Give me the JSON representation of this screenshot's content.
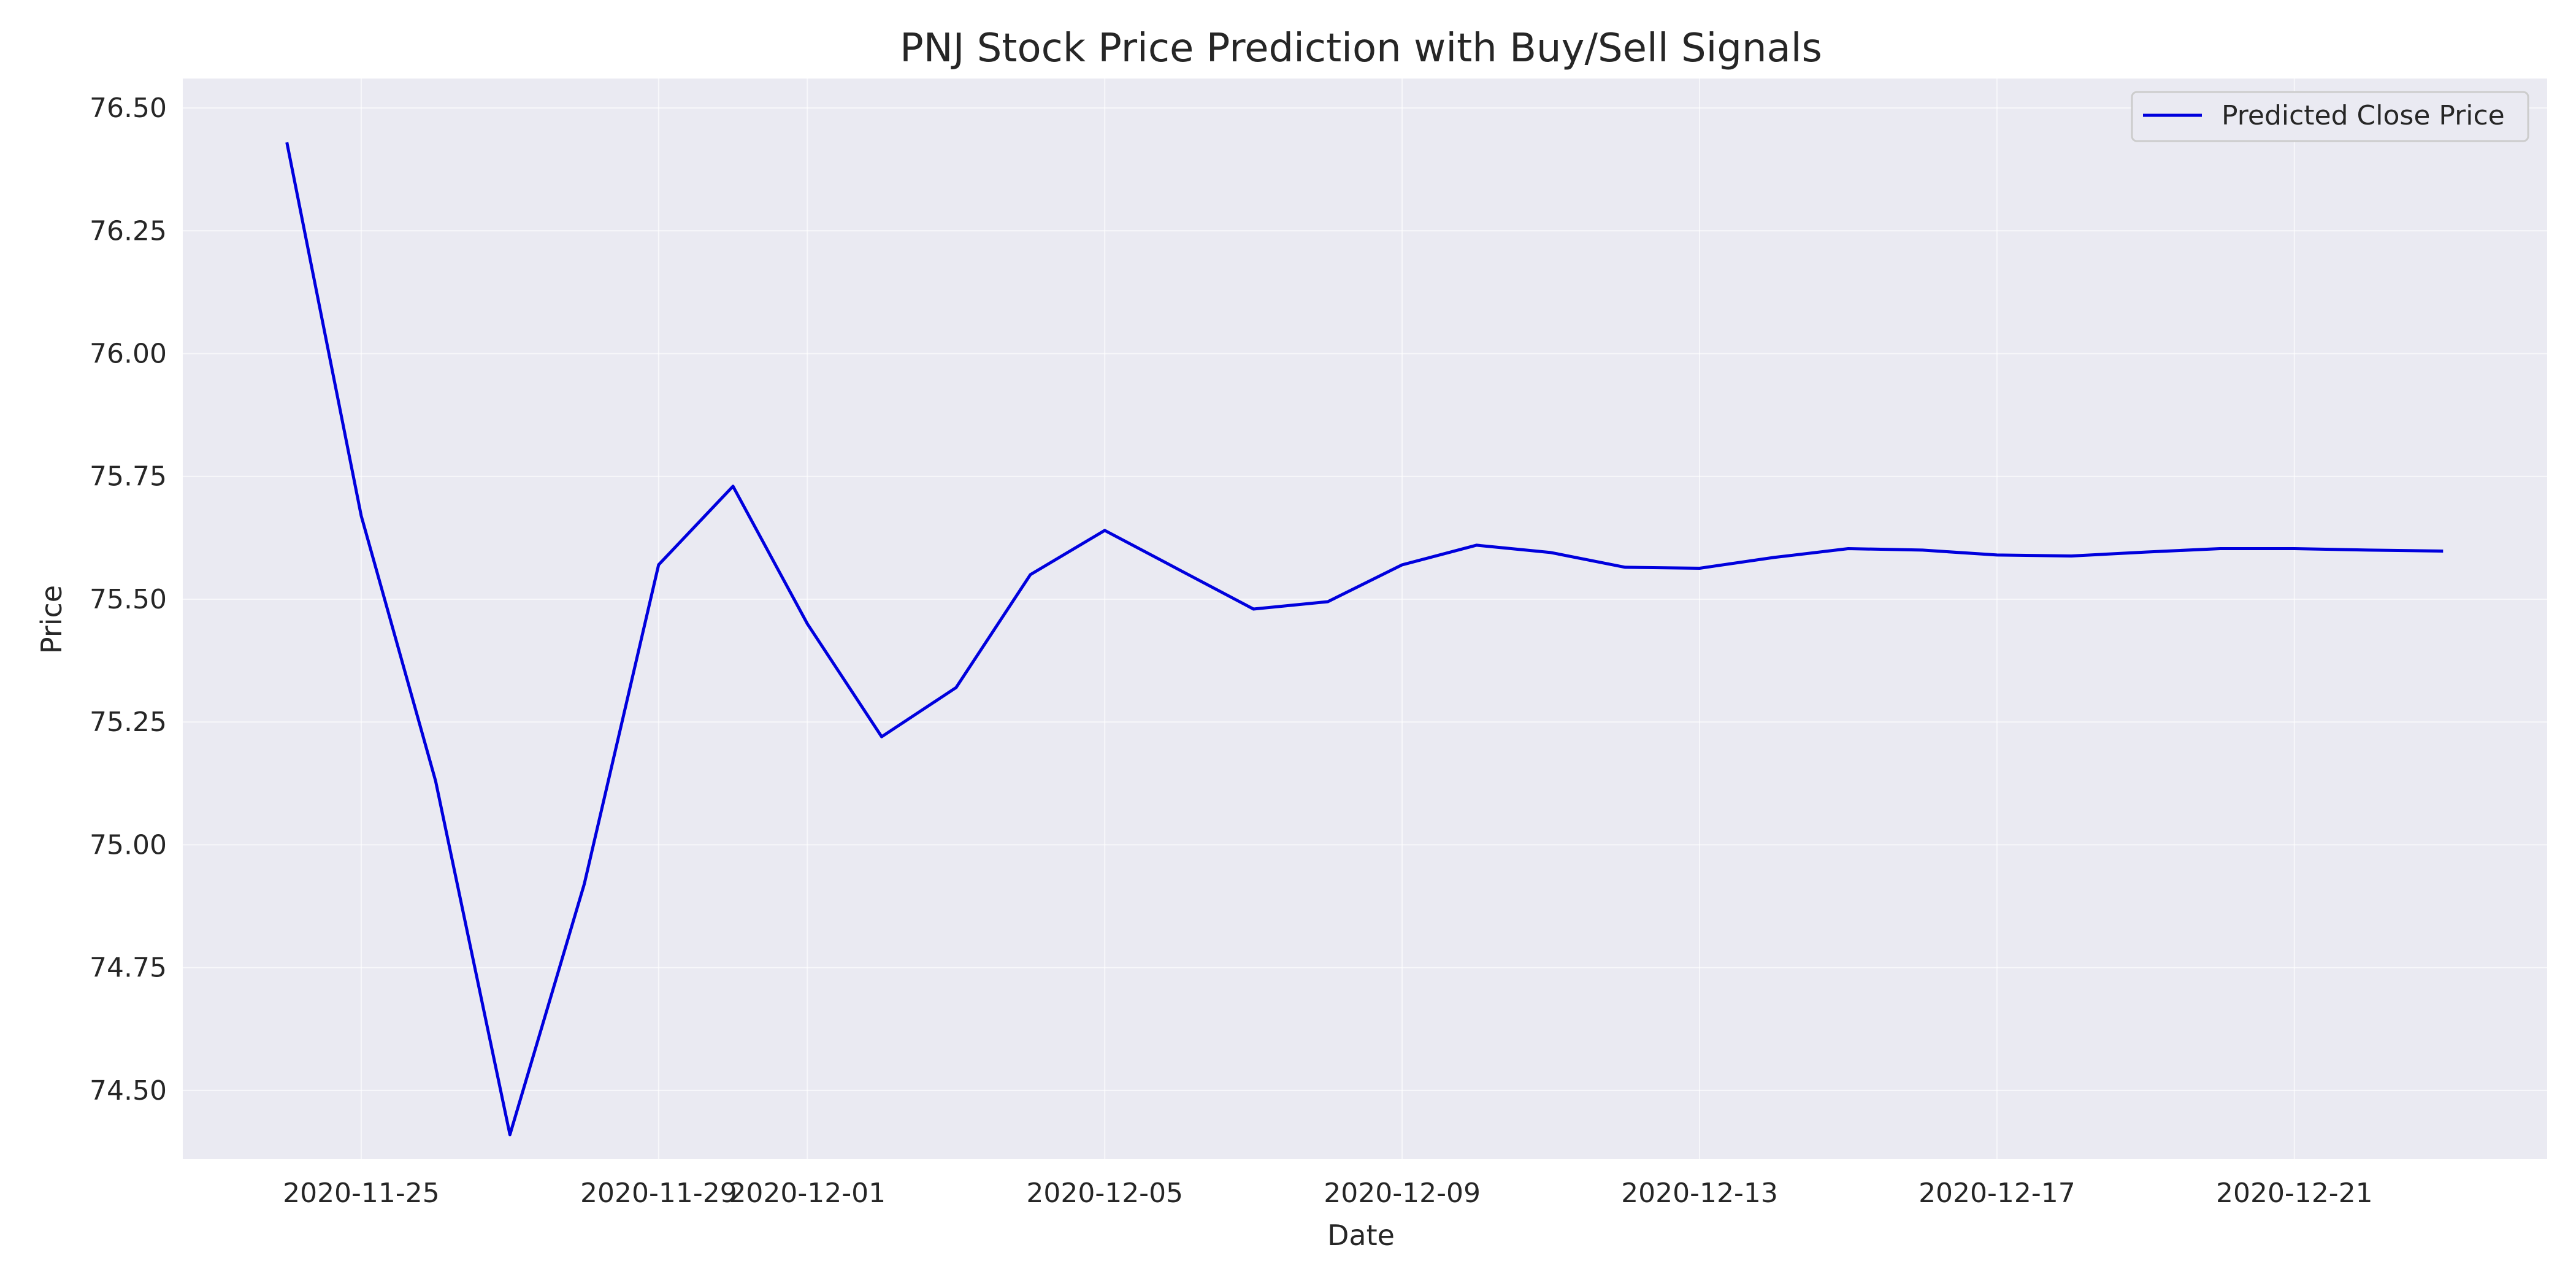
{
  "chart_data": {
    "type": "line",
    "title": "PNJ Stock Price Prediction with Buy/Sell Signals",
    "xlabel": "Date",
    "ylabel": "Price",
    "x": [
      "2020-11-24",
      "2020-11-25",
      "2020-11-26",
      "2020-11-27",
      "2020-11-28",
      "2020-11-29",
      "2020-11-30",
      "2020-12-01",
      "2020-12-02",
      "2020-12-03",
      "2020-12-04",
      "2020-12-05",
      "2020-12-06",
      "2020-12-07",
      "2020-12-08",
      "2020-12-09",
      "2020-12-10",
      "2020-12-11",
      "2020-12-12",
      "2020-12-13",
      "2020-12-14",
      "2020-12-15",
      "2020-12-16",
      "2020-12-17",
      "2020-12-18",
      "2020-12-19",
      "2020-12-20",
      "2020-12-21",
      "2020-12-22",
      "2020-12-23"
    ],
    "x_tick_values": [
      "2020-11-25",
      "2020-11-29",
      "2020-12-01",
      "2020-12-05",
      "2020-12-09",
      "2020-12-13",
      "2020-12-17",
      "2020-12-21"
    ],
    "x_tick_labels": [
      "2020-11-25",
      "2020-11-29",
      "2020-12-01",
      "2020-12-05",
      "2020-12-09",
      "2020-12-13",
      "2020-12-17",
      "2020-12-21"
    ],
    "xlim": [
      "2020-11-22.6",
      "2020-12-24.4"
    ],
    "ylim": [
      74.36,
      76.56
    ],
    "y_ticks": [
      74.5,
      74.75,
      75.0,
      75.25,
      75.5,
      75.75,
      76.0,
      76.25,
      76.5
    ],
    "y_tick_labels": [
      "74.50",
      "74.75",
      "75.00",
      "75.25",
      "75.50",
      "75.75",
      "76.00",
      "76.25",
      "76.50"
    ],
    "series": [
      {
        "name": "Predicted Close Price",
        "color": "#0000dd",
        "values": [
          76.43,
          75.67,
          75.13,
          74.41,
          74.92,
          75.57,
          75.73,
          75.45,
          75.22,
          75.32,
          75.55,
          75.64,
          75.56,
          75.48,
          75.495,
          75.57,
          75.61,
          75.595,
          75.565,
          75.563,
          75.585,
          75.603,
          75.6,
          75.59,
          75.588,
          75.596,
          75.603,
          75.603,
          75.6,
          75.598
        ]
      }
    ],
    "grid": true,
    "legend_position": "top-right",
    "background_color": "#eaeaf2"
  }
}
